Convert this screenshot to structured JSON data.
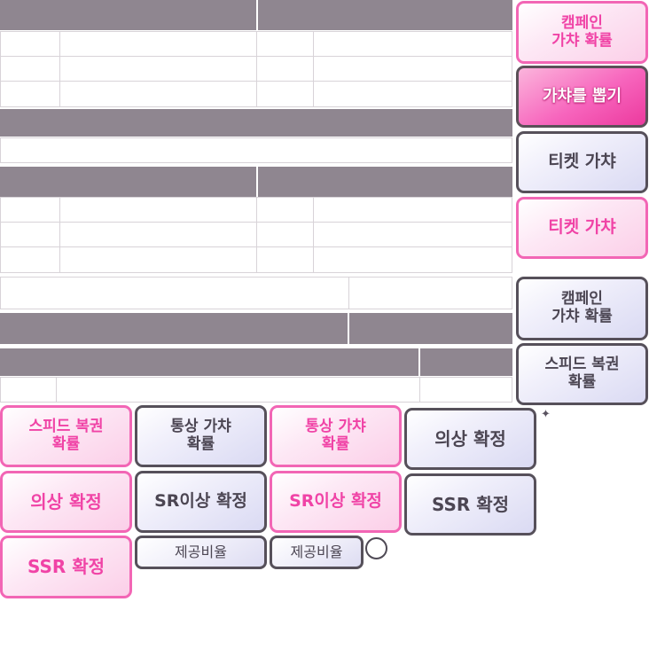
{
  "buttons": {
    "campaign_prob_pink": "캠페인\n가챠 확률",
    "gacha_draw": "가챠를 뽑기",
    "ticket_gacha_gray": "티켓 가챠",
    "ticket_gacha_pink": "티켓 가챠",
    "campaign_prob_gray": "캠페인\n가챠 확률",
    "speed_reticket_prob_gray": "스피드 복권\n확률",
    "speed_reticket_prob_pink": "스피드 복권\n확률",
    "normal_gacha_prob_gray": "통상 가챠\n확률",
    "normal_gacha_prob_pink": "통상 가챠\n확률",
    "outfit_confirm_gray": "의상 확정",
    "outfit_confirm_pink": "의상 확정",
    "sr_outfit_confirm_gray": "SR이상 확정",
    "sr_outfit_confirm_pink": "SR이상 확정",
    "ssr_confirm_gray": "SSR 확정",
    "ssr_confirm_pink": "SSR 확정",
    "provide_ratio_1": "제공비율",
    "provide_ratio_2": "제공비율"
  },
  "decor": {
    "sparkle": "✦"
  },
  "colors": {
    "header_bar": "#8f8690",
    "pink_accent": "#f043a6",
    "dark_border": "#56505a",
    "lavender_fill": "#dadaf3"
  }
}
